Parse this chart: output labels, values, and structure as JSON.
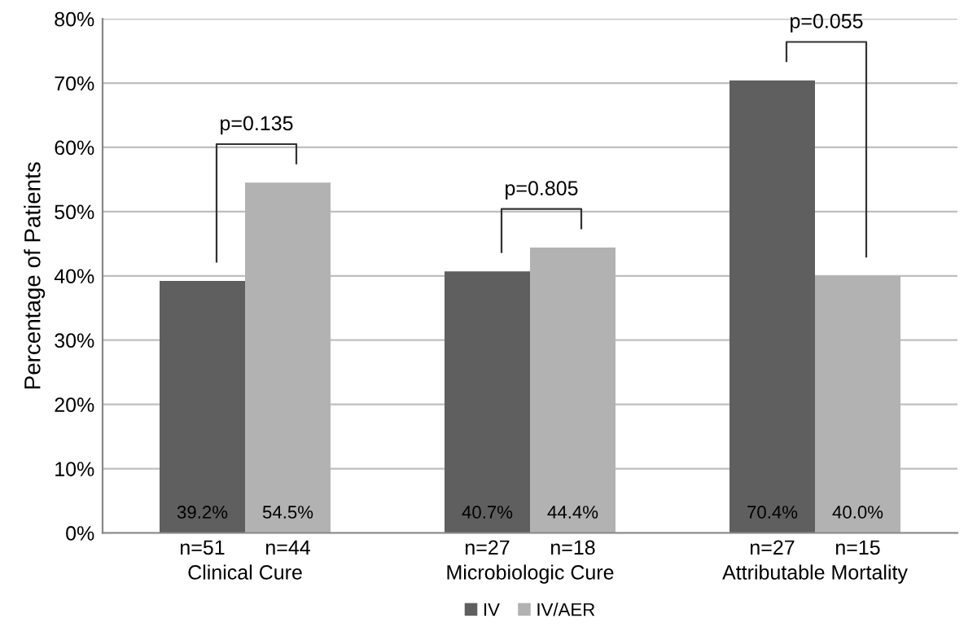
{
  "chart_data": {
    "type": "bar",
    "ylabel": "Percentage of Patients",
    "categories": [
      "Clinical Cure",
      "Microbiologic Cure",
      "Attributable Mortality"
    ],
    "series": [
      {
        "name": "IV",
        "color": "#5f5f5f",
        "values": [
          39.2,
          40.7,
          70.4
        ],
        "value_labels": [
          "39.2%",
          "40.7%",
          "70.4%"
        ]
      },
      {
        "name": "IV/AER",
        "color": "#b2b2b2",
        "values": [
          54.5,
          44.4,
          40.0
        ],
        "value_labels": [
          "54.5%",
          "44.4%",
          "40.0%"
        ]
      }
    ],
    "ylim": [
      0,
      80
    ],
    "yticks": [
      {
        "value": 0,
        "label": "0%"
      },
      {
        "value": 10,
        "label": "10%"
      },
      {
        "value": 20,
        "label": "20%"
      },
      {
        "value": 30,
        "label": "30%"
      },
      {
        "value": 40,
        "label": "40%"
      },
      {
        "value": 50,
        "label": "50%"
      },
      {
        "value": 60,
        "label": "60%"
      },
      {
        "value": 70,
        "label": "70%"
      },
      {
        "value": 80,
        "label": "80%"
      }
    ],
    "grid": "y",
    "legend": "bottom",
    "annotations": [
      "p=0.135",
      "p=0.805",
      "p=0.055",
      "n=51",
      "n=44",
      "n=27",
      "n=18",
      "n=27",
      "n=15"
    ]
  }
}
